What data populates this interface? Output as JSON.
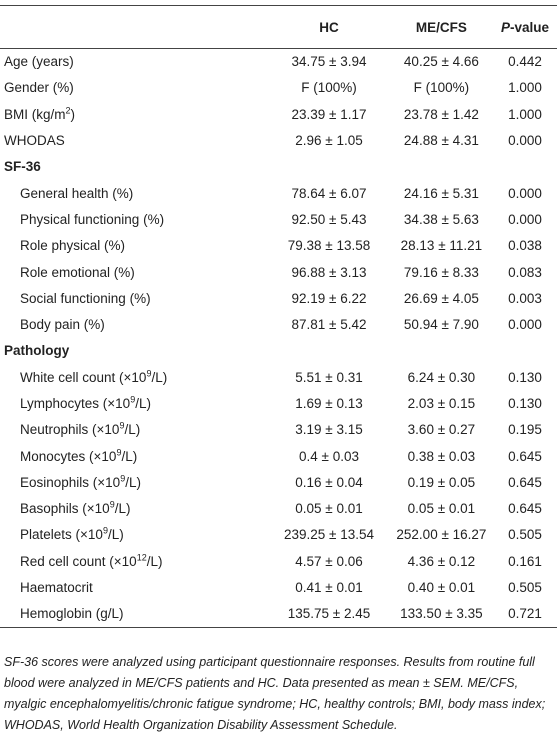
{
  "table": {
    "header": {
      "hc": "HC",
      "mecfs": "ME/CFS",
      "p_italic": "P",
      "p_rest": "-value"
    },
    "rows": [
      {
        "label": [
          "Age (years)"
        ],
        "hc": "34.75 ± 3.94",
        "mecfs": "40.25 ± 4.66",
        "p": "0.442"
      },
      {
        "label": [
          "Gender (%)"
        ],
        "hc": "F (100%)",
        "mecfs": "F (100%)",
        "p": "1.000"
      },
      {
        "label": [
          "BMI (kg/m",
          "2",
          ")"
        ],
        "hc": "23.39 ± 1.17",
        "mecfs": "23.78 ± 1.42",
        "p": "1.000"
      },
      {
        "label": [
          "WHODAS"
        ],
        "hc": "2.96 ± 1.05",
        "mecfs": "24.88 ± 4.31",
        "p": "0.000"
      }
    ],
    "sections": [
      {
        "title": "SF-36",
        "rows": [
          {
            "label": [
              "General health (%)"
            ],
            "hc": "78.64 ± 6.07",
            "mecfs": "24.16 ± 5.31",
            "p": "0.000"
          },
          {
            "label": [
              "Physical functioning (%)"
            ],
            "hc": "92.50 ± 5.43",
            "mecfs": "34.38 ± 5.63",
            "p": "0.000"
          },
          {
            "label": [
              "Role physical (%)"
            ],
            "hc": "79.38 ± 13.58",
            "mecfs": "28.13 ± 11.21",
            "p": "0.038"
          },
          {
            "label": [
              "Role emotional (%)"
            ],
            "hc": "96.88 ± 3.13",
            "mecfs": "79.16 ± 8.33",
            "p": "0.083"
          },
          {
            "label": [
              "Social functioning (%)"
            ],
            "hc": "92.19 ± 6.22",
            "mecfs": "26.69 ± 4.05",
            "p": "0.003"
          },
          {
            "label": [
              "Body pain (%)"
            ],
            "hc": "87.81 ± 5.42",
            "mecfs": "50.94 ± 7.90",
            "p": "0.000"
          }
        ]
      },
      {
        "title": "Pathology",
        "rows": [
          {
            "label": [
              "White cell count (×10",
              "9",
              "/L)"
            ],
            "hc": "5.51 ± 0.31",
            "mecfs": "6.24 ± 0.30",
            "p": "0.130"
          },
          {
            "label": [
              "Lymphocytes (×10",
              "9",
              "/L)"
            ],
            "hc": "1.69 ± 0.13",
            "mecfs": "2.03 ± 0.15",
            "p": "0.130"
          },
          {
            "label": [
              "Neutrophils (×10",
              "9",
              "/L)"
            ],
            "hc": "3.19 ± 3.15",
            "mecfs": "3.60 ± 0.27",
            "p": "0.195"
          },
          {
            "label": [
              "Monocytes (×10",
              "9",
              "/L)"
            ],
            "hc": "0.4 ± 0.03",
            "mecfs": "0.38 ± 0.03",
            "p": "0.645"
          },
          {
            "label": [
              "Eosinophils (×10",
              "9",
              "/L)"
            ],
            "hc": "0.16 ± 0.04",
            "mecfs": "0.19 ± 0.05",
            "p": "0.645"
          },
          {
            "label": [
              "Basophils (×10",
              "9",
              "/L)"
            ],
            "hc": "0.05 ± 0.01",
            "mecfs": "0.05 ± 0.01",
            "p": "0.645"
          },
          {
            "label": [
              "Platelets (×10",
              "9",
              "/L)"
            ],
            "hc": "239.25 ± 13.54",
            "mecfs": "252.00 ± 16.27",
            "p": "0.505"
          },
          {
            "label": [
              "Red cell count (×10",
              "12",
              "/L)"
            ],
            "hc": "4.57 ± 0.06",
            "mecfs": "4.36 ± 0.12",
            "p": "0.161"
          },
          {
            "label": [
              "Haematocrit"
            ],
            "hc": "0.41 ± 0.01",
            "mecfs": "0.40 ± 0.01",
            "p": "0.505"
          },
          {
            "label": [
              "Hemoglobin (g/L)"
            ],
            "hc": "135.75 ± 2.45",
            "mecfs": "133.50 ± 3.35",
            "p": "0.721"
          }
        ]
      }
    ],
    "footnote": "SF-36 scores were analyzed using participant questionnaire responses. Results from routine full blood were analyzed in ME/CFS patients and HC. Data presented as mean ± SEM. ME/CFS, myalgic encephalomyelitis/chronic fatigue syndrome; HC, healthy controls; BMI, body mass index; WHODAS, World Health Organization Disability Assessment Schedule."
  }
}
